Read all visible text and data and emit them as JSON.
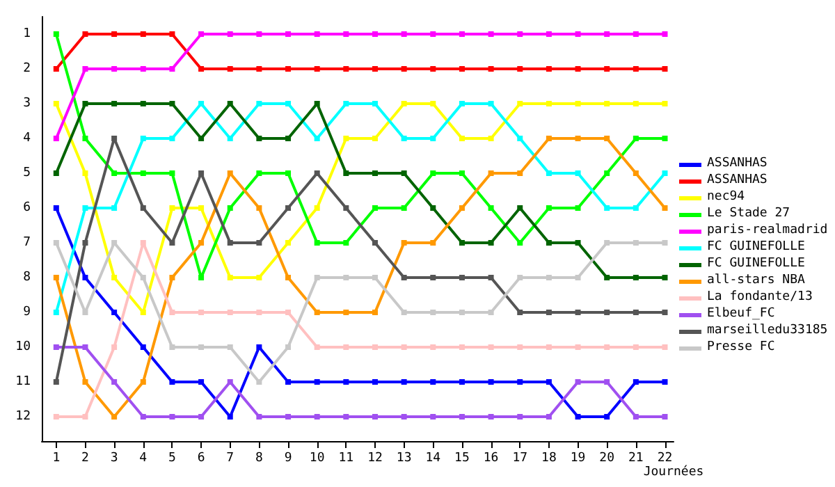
{
  "chart_data": {
    "type": "line",
    "xlabel": "Journées",
    "x": [
      1,
      2,
      3,
      4,
      5,
      6,
      7,
      8,
      9,
      10,
      11,
      12,
      13,
      14,
      15,
      16,
      17,
      18,
      19,
      20,
      21,
      22
    ],
    "xlim": [
      0.5,
      22.3
    ],
    "xticks": [
      1,
      2,
      3,
      4,
      5,
      6,
      7,
      8,
      9,
      10,
      11,
      12,
      13,
      14,
      15,
      16,
      17,
      18,
      19,
      20,
      21,
      22
    ],
    "ylim": [
      12.7,
      0.5
    ],
    "yticks": [
      1,
      2,
      3,
      4,
      5,
      6,
      7,
      8,
      9,
      10,
      11,
      12
    ],
    "grid": false,
    "legend": "right",
    "marker": "square",
    "line_style": "solid",
    "series": [
      {
        "name": "ASSANHAS",
        "color": "#0000ff",
        "values": [
          6,
          8,
          9,
          10,
          11,
          11,
          12,
          10,
          11,
          11,
          11,
          11,
          11,
          11,
          11,
          11,
          11,
          11,
          12,
          12,
          11,
          11
        ]
      },
      {
        "name": "ASSANHAS",
        "color": "#ff0000",
        "values": [
          2,
          1,
          1,
          1,
          1,
          2,
          2,
          2,
          2,
          2,
          2,
          2,
          2,
          2,
          2,
          2,
          2,
          2,
          2,
          2,
          2,
          2
        ]
      },
      {
        "name": "nec94",
        "color": "#ffff00",
        "values": [
          3,
          5,
          8,
          9,
          6,
          6,
          8,
          8,
          7,
          6,
          4,
          4,
          3,
          3,
          4,
          4,
          3,
          3,
          3,
          3,
          3,
          3
        ]
      },
      {
        "name": "Le Stade 27",
        "color": "#00ff00",
        "values": [
          1,
          4,
          5,
          5,
          5,
          8,
          6,
          5,
          5,
          7,
          7,
          6,
          6,
          5,
          5,
          6,
          7,
          6,
          6,
          5,
          4,
          4
        ]
      },
      {
        "name": "paris-realmadrid",
        "color": "#ff00ff",
        "values": [
          4,
          2,
          2,
          2,
          2,
          1,
          1,
          1,
          1,
          1,
          1,
          1,
          1,
          1,
          1,
          1,
          1,
          1,
          1,
          1,
          1,
          1
        ]
      },
      {
        "name": "FC GUINEFOLLE",
        "color": "#00ffff",
        "values": [
          9,
          6,
          6,
          4,
          4,
          3,
          4,
          3,
          3,
          4,
          3,
          3,
          4,
          4,
          3,
          3,
          4,
          5,
          5,
          6,
          6,
          5
        ]
      },
      {
        "name": "FC GUINEFOLLE",
        "color": "#006400",
        "values": [
          5,
          3,
          3,
          3,
          3,
          4,
          3,
          4,
          4,
          3,
          5,
          5,
          5,
          6,
          7,
          7,
          6,
          7,
          7,
          8,
          8,
          8
        ]
      },
      {
        "name": "all-stars NBA",
        "color": "#ff9900",
        "values": [
          8,
          11,
          12,
          11,
          8,
          7,
          5,
          6,
          8,
          9,
          9,
          9,
          7,
          7,
          6,
          5,
          5,
          4,
          4,
          4,
          5,
          6
        ]
      },
      {
        "name": "La fondante/13",
        "color": "#ffc0c0",
        "values": [
          12,
          12,
          10,
          7,
          9,
          9,
          9,
          9,
          9,
          10,
          10,
          10,
          10,
          10,
          10,
          10,
          10,
          10,
          10,
          10,
          10,
          10
        ]
      },
      {
        "name": "Elbeuf_FC",
        "color": "#a050f0",
        "values": [
          10,
          10,
          11,
          12,
          12,
          12,
          11,
          12,
          12,
          12,
          12,
          12,
          12,
          12,
          12,
          12,
          12,
          12,
          11,
          11,
          12,
          12
        ]
      },
      {
        "name": "marseilledu33185",
        "color": "#555555",
        "values": [
          11,
          7,
          4,
          6,
          7,
          5,
          7,
          7,
          6,
          5,
          6,
          7,
          8,
          8,
          8,
          8,
          9,
          9,
          9,
          9,
          9,
          9
        ]
      },
      {
        "name": "Presse FC",
        "color": "#c8c8c8",
        "values": [
          7,
          9,
          7,
          8,
          10,
          10,
          10,
          11,
          10,
          8,
          8,
          8,
          9,
          9,
          9,
          9,
          8,
          8,
          8,
          7,
          7,
          7
        ]
      }
    ]
  }
}
